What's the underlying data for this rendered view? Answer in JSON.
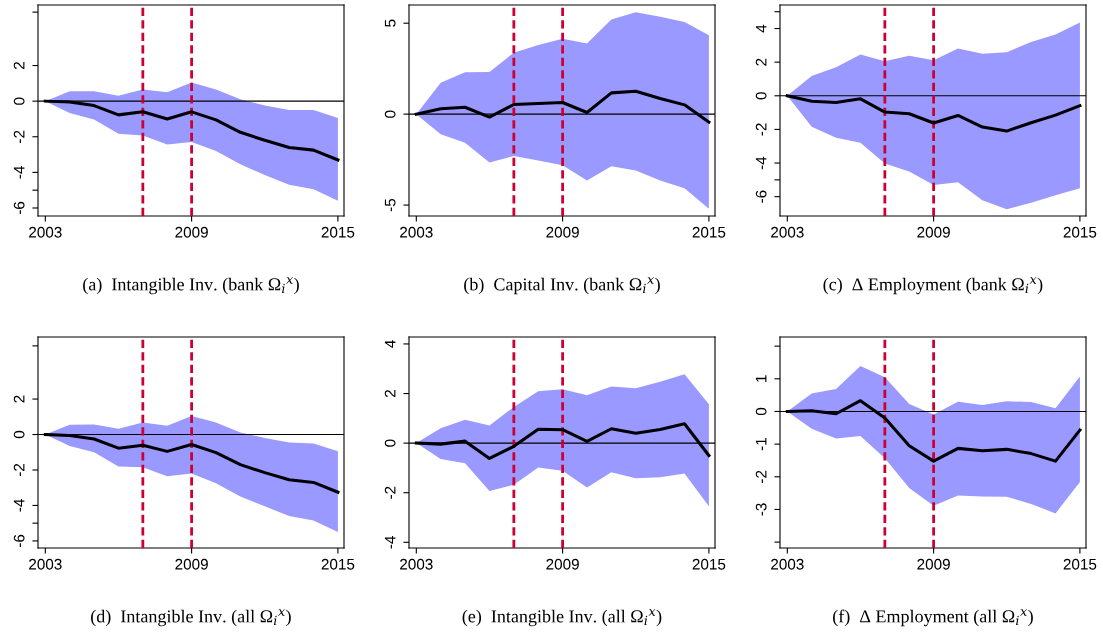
{
  "chart_data": [
    {
      "type": "line",
      "title": "(a)  Intangible Inv. (bank Ω$_{i}$$^{x}$)",
      "x": [
        2003,
        2004,
        2005,
        2006,
        2007,
        2008,
        2009,
        2010,
        2011,
        2012,
        2013,
        2014,
        2015
      ],
      "xlim": [
        2002.7,
        2015.25
      ],
      "xticks": [
        2003,
        2009,
        2015
      ],
      "ylim": [
        -6.45,
        5.4
      ],
      "yticks": [
        {
          "value": -6,
          "label": "-6"
        },
        {
          "value": -5,
          "label": null
        },
        {
          "value": -4,
          "label": "-4"
        },
        {
          "value": -2,
          "label": "-2"
        },
        0,
        2,
        {
          "value": 5,
          "label": null
        }
      ],
      "grid": false,
      "legend": false,
      "series": [
        {
          "color": "#000000",
          "values": [
            0,
            -0.05,
            -0.25,
            -0.77,
            -0.6,
            -1.0,
            -0.6,
            -1.05,
            -1.75,
            -2.2,
            -2.6,
            -2.75,
            -3.3
          ],
          "lower": [
            0,
            -0.67,
            -1.03,
            -1.83,
            -1.93,
            -2.43,
            -2.3,
            -2.8,
            -3.55,
            -4.15,
            -4.7,
            -4.95,
            -5.6
          ],
          "upper": [
            0,
            0.55,
            0.55,
            0.3,
            0.65,
            0.5,
            1.05,
            0.65,
            0.1,
            -0.25,
            -0.5,
            -0.5,
            -0.95
          ]
        }
      ],
      "ref_lines": [
        {
          "axis": "y",
          "value": 0,
          "color": "#000000",
          "line_style": "solid"
        },
        {
          "axis": "x",
          "value": 2007,
          "color": "#cc0033",
          "line_style": "dashed"
        },
        {
          "axis": "x",
          "value": 2009,
          "color": "#cc0033",
          "line_style": "dashed"
        }
      ]
    },
    {
      "type": "line",
      "title": "(b)  Capital Inv. (bank Ω$_{i}$$^{x}$)",
      "x": [
        2003,
        2004,
        2005,
        2006,
        2007,
        2008,
        2009,
        2010,
        2011,
        2012,
        2013,
        2014,
        2015
      ],
      "xlim": [
        2002.7,
        2015.25
      ],
      "xticks": [
        2003,
        2009,
        2015
      ],
      "ylim": [
        -5.6,
        6.0
      ],
      "yticks": [
        {
          "value": -5,
          "label": "-5"
        },
        0,
        5
      ],
      "grid": false,
      "legend": false,
      "series": [
        {
          "color": "#000000",
          "values": [
            0,
            0.3,
            0.38,
            -0.16,
            0.53,
            0.58,
            0.64,
            0.09,
            1.17,
            1.26,
            0.86,
            0.51,
            -0.44
          ],
          "lower": [
            0,
            -1.1,
            -1.57,
            -2.66,
            -2.3,
            -2.55,
            -2.81,
            -3.65,
            -2.87,
            -3.1,
            -3.65,
            -4.07,
            -5.2
          ],
          "upper": [
            0,
            1.73,
            2.3,
            2.32,
            3.38,
            3.8,
            4.14,
            3.89,
            5.2,
            5.6,
            5.35,
            5.07,
            4.34
          ]
        }
      ],
      "ref_lines": [
        {
          "axis": "y",
          "value": 0,
          "color": "#000000",
          "line_style": "solid"
        },
        {
          "axis": "x",
          "value": 2007,
          "color": "#cc0033",
          "line_style": "dashed"
        },
        {
          "axis": "x",
          "value": 2009,
          "color": "#cc0033",
          "line_style": "dashed"
        }
      ]
    },
    {
      "type": "line",
      "title": "(c)  Δ Employment (bank Ω$_{i}$$^{x}$)",
      "x": [
        2003,
        2004,
        2005,
        2006,
        2007,
        2008,
        2009,
        2010,
        2011,
        2012,
        2013,
        2014,
        2015
      ],
      "xlim": [
        2002.7,
        2015.25
      ],
      "xticks": [
        2003,
        2009,
        2015
      ],
      "ylim": [
        -7.15,
        5.4
      ],
      "yticks": [
        {
          "value": -6,
          "label": "-6"
        },
        {
          "value": -5,
          "label": null
        },
        {
          "value": -4,
          "label": "-4"
        },
        {
          "value": -2,
          "label": "-2"
        },
        0,
        2,
        4,
        {
          "value": 5,
          "label": null
        }
      ],
      "grid": false,
      "legend": false,
      "series": [
        {
          "color": "#000000",
          "values": [
            0,
            -0.32,
            -0.4,
            -0.18,
            -0.97,
            -1.07,
            -1.62,
            -1.17,
            -1.86,
            -2.1,
            -1.6,
            -1.15,
            -0.59
          ],
          "lower": [
            0,
            -1.84,
            -2.5,
            -2.79,
            -4.02,
            -4.51,
            -5.31,
            -5.15,
            -6.22,
            -6.75,
            -6.36,
            -5.92,
            -5.5
          ],
          "upper": [
            0,
            1.17,
            1.7,
            2.46,
            2.06,
            2.38,
            2.12,
            2.81,
            2.5,
            2.59,
            3.2,
            3.64,
            4.36
          ]
        }
      ],
      "ref_lines": [
        {
          "axis": "y",
          "value": 0,
          "color": "#000000",
          "line_style": "solid"
        },
        {
          "axis": "x",
          "value": 2007,
          "color": "#cc0033",
          "line_style": "dashed"
        },
        {
          "axis": "x",
          "value": 2009,
          "color": "#cc0033",
          "line_style": "dashed"
        }
      ]
    },
    {
      "type": "line",
      "title": "(d)  Intangible Inv. (all Ω$_{i}$$^{x}$)",
      "x": [
        2003,
        2004,
        2005,
        2006,
        2007,
        2008,
        2009,
        2010,
        2011,
        2012,
        2013,
        2014,
        2015
      ],
      "xlim": [
        2002.7,
        2015.25
      ],
      "xticks": [
        2003,
        2009,
        2015
      ],
      "ylim": [
        -6.4,
        5.5
      ],
      "yticks": [
        {
          "value": -6,
          "label": "-6"
        },
        {
          "value": -5,
          "label": null
        },
        {
          "value": -4,
          "label": "-4"
        },
        {
          "value": -2,
          "label": "-2"
        },
        0,
        2,
        {
          "value": 5,
          "label": null
        }
      ],
      "grid": false,
      "legend": false,
      "series": [
        {
          "color": "#000000",
          "values": [
            0,
            -0.05,
            -0.25,
            -0.77,
            -0.6,
            -0.95,
            -0.56,
            -1.02,
            -1.7,
            -2.15,
            -2.55,
            -2.7,
            -3.25
          ],
          "lower": [
            0,
            -0.65,
            -1.0,
            -1.8,
            -1.85,
            -2.35,
            -2.2,
            -2.75,
            -3.5,
            -4.05,
            -4.6,
            -4.85,
            -5.5
          ],
          "upper": [
            0,
            0.55,
            0.57,
            0.32,
            0.68,
            0.5,
            1.05,
            0.68,
            0.12,
            -0.2,
            -0.45,
            -0.5,
            -0.95
          ]
        }
      ],
      "ref_lines": [
        {
          "axis": "y",
          "value": 0,
          "color": "#000000",
          "line_style": "solid"
        },
        {
          "axis": "x",
          "value": 2007,
          "color": "#cc0033",
          "line_style": "dashed"
        },
        {
          "axis": "x",
          "value": 2009,
          "color": "#cc0033",
          "line_style": "dashed"
        }
      ]
    },
    {
      "type": "line",
      "title": "(e)  Intangible Inv. (all Ω$_{i}$$^{x}$)",
      "x": [
        2003,
        2004,
        2005,
        2006,
        2007,
        2008,
        2009,
        2010,
        2011,
        2012,
        2013,
        2014,
        2015
      ],
      "xlim": [
        2002.7,
        2015.25
      ],
      "xticks": [
        2003,
        2009,
        2015
      ],
      "ylim": [
        -4.23,
        4.28
      ],
      "yticks": [
        {
          "value": -4,
          "label": "-4"
        },
        {
          "value": -2,
          "label": "-2"
        },
        0,
        2,
        4
      ],
      "grid": false,
      "legend": false,
      "series": [
        {
          "color": "#000000",
          "values": [
            0,
            -0.04,
            0.08,
            -0.62,
            -0.13,
            0.56,
            0.54,
            0.07,
            0.58,
            0.4,
            0.55,
            0.78,
            -0.5
          ],
          "lower": [
            0,
            -0.64,
            -0.81,
            -1.93,
            -1.68,
            -0.98,
            -1.11,
            -1.79,
            -1.17,
            -1.42,
            -1.38,
            -1.23,
            -2.55
          ],
          "upper": [
            0,
            0.6,
            0.94,
            0.71,
            1.46,
            2.09,
            2.17,
            1.93,
            2.28,
            2.21,
            2.48,
            2.78,
            1.57
          ]
        }
      ],
      "ref_lines": [
        {
          "axis": "y",
          "value": 0,
          "color": "#000000",
          "line_style": "solid"
        },
        {
          "axis": "x",
          "value": 2007,
          "color": "#cc0033",
          "line_style": "dashed"
        },
        {
          "axis": "x",
          "value": 2009,
          "color": "#cc0033",
          "line_style": "dashed"
        }
      ]
    },
    {
      "type": "line",
      "title": "(f)  Δ Employment (all Ω$_{i}$$^{x}$)",
      "x": [
        2003,
        2004,
        2005,
        2006,
        2007,
        2008,
        2009,
        2010,
        2011,
        2012,
        2013,
        2014,
        2015
      ],
      "xlim": [
        2002.7,
        2015.25
      ],
      "xticks": [
        2003,
        2009,
        2015
      ],
      "ylim": [
        -4.18,
        2.28
      ],
      "yticks": [
        {
          "value": -4,
          "label": null
        },
        {
          "value": -3,
          "label": "-3"
        },
        {
          "value": -2,
          "label": "-2"
        },
        {
          "value": -1,
          "label": "-1"
        },
        0,
        1,
        {
          "value": 2,
          "label": null
        }
      ],
      "grid": false,
      "legend": false,
      "series": [
        {
          "color": "#000000",
          "values": [
            0,
            0.02,
            -0.07,
            0.33,
            -0.2,
            -1.05,
            -1.52,
            -1.13,
            -1.2,
            -1.16,
            -1.29,
            -1.52,
            -0.57
          ],
          "lower": [
            0,
            -0.53,
            -0.83,
            -0.75,
            -1.43,
            -2.34,
            -2.89,
            -2.57,
            -2.6,
            -2.61,
            -2.83,
            -3.12,
            -2.16
          ],
          "upper": [
            0,
            0.55,
            0.69,
            1.39,
            1.05,
            0.23,
            -0.09,
            0.3,
            0.2,
            0.31,
            0.29,
            0.1,
            1.07
          ]
        }
      ],
      "ref_lines": [
        {
          "axis": "y",
          "value": 0,
          "color": "#000000",
          "line_style": "solid"
        },
        {
          "axis": "x",
          "value": 2007,
          "color": "#cc0033",
          "line_style": "dashed"
        },
        {
          "axis": "x",
          "value": 2009,
          "color": "#cc0033",
          "line_style": "dashed"
        }
      ]
    }
  ]
}
